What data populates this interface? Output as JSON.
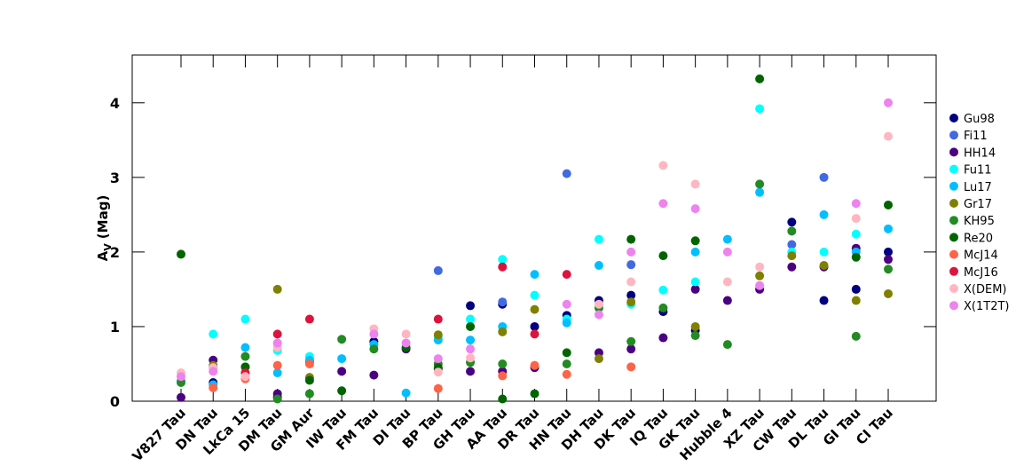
{
  "chart_data": {
    "type": "scatter",
    "ylabel": "A",
    "ylabel_subscript": "V",
    "ylabel_unit": "(Mag)",
    "categories": [
      "V827 Tau",
      "DN Tau",
      "LkCa 15",
      "DM Tau",
      "GM Aur",
      "IW Tau",
      "FM Tau",
      "DI Tau",
      "BP Tau",
      "GH Tau",
      "AA Tau",
      "DR Tau",
      "HN Tau",
      "DH Tau",
      "DK Tau",
      "IQ Tau",
      "GK Tau",
      "Hubble 4",
      "XZ Tau",
      "CW Tau",
      "DL Tau",
      "GI Tau",
      "CI Tau"
    ],
    "ylim": [
      0,
      4.64
    ],
    "yticks": [
      0,
      1,
      2,
      3,
      4
    ],
    "legend": "right",
    "series": [
      {
        "name": "Gu98",
        "color": "#000080",
        "values": [
          null,
          0.25,
          null,
          0.05,
          null,
          null,
          0.8,
          null,
          null,
          1.28,
          1.3,
          1.0,
          1.15,
          1.35,
          1.42,
          1.2,
          0.95,
          null,
          null,
          2.4,
          1.35,
          1.5,
          2.0
        ]
      },
      {
        "name": "Fi11",
        "color": "#4169e1",
        "values": [
          null,
          null,
          null,
          null,
          null,
          null,
          null,
          null,
          1.75,
          null,
          1.33,
          null,
          3.05,
          null,
          1.83,
          null,
          null,
          null,
          null,
          2.1,
          3.0,
          null,
          null
        ]
      },
      {
        "name": "HH14",
        "color": "#4b0082",
        "values": [
          0.05,
          0.55,
          null,
          0.1,
          0.53,
          0.4,
          0.35,
          0.7,
          0.43,
          0.4,
          0.4,
          0.45,
          null,
          0.65,
          0.7,
          0.85,
          1.5,
          1.35,
          1.5,
          1.8,
          1.8,
          2.05,
          1.9
        ]
      },
      {
        "name": "Fu11",
        "color": "#00ffff",
        "values": [
          null,
          0.9,
          1.1,
          0.68,
          0.6,
          null,
          null,
          null,
          0.85,
          1.1,
          1.9,
          1.42,
          1.1,
          2.17,
          1.3,
          1.49,
          1.6,
          null,
          3.92,
          2.0,
          2.0,
          2.24,
          null
        ]
      },
      {
        "name": "Lu17",
        "color": "#00bfff",
        "values": [
          0.27,
          0.22,
          0.72,
          0.38,
          0.55,
          0.57,
          0.76,
          0.11,
          0.82,
          0.82,
          1.0,
          1.7,
          1.05,
          1.82,
          null,
          null,
          2.0,
          2.17,
          2.8,
          null,
          2.5,
          2.0,
          2.31
        ]
      },
      {
        "name": "Gr17",
        "color": "#808000",
        "values": [
          null,
          0.48,
          0.38,
          1.5,
          0.32,
          null,
          null,
          null,
          0.89,
          null,
          0.93,
          1.23,
          null,
          0.57,
          1.33,
          null,
          1.0,
          null,
          1.68,
          1.95,
          1.82,
          1.35,
          1.44
        ]
      },
      {
        "name": "KH95",
        "color": "#228b22",
        "values": [
          0.25,
          0.45,
          0.6,
          0.03,
          0.1,
          0.83,
          0.7,
          null,
          0.5,
          0.52,
          0.5,
          null,
          0.5,
          1.25,
          0.8,
          1.25,
          0.88,
          0.76,
          2.91,
          2.28,
          null,
          0.87,
          1.77
        ]
      },
      {
        "name": "Re20",
        "color": "#006400",
        "values": [
          1.97,
          null,
          0.46,
          null,
          0.28,
          0.14,
          null,
          0.72,
          0.45,
          1.0,
          0.03,
          0.1,
          0.65,
          null,
          2.17,
          1.95,
          2.15,
          null,
          4.32,
          null,
          null,
          1.93,
          2.63
        ]
      },
      {
        "name": "McJ14",
        "color": "#ff6347",
        "values": [
          null,
          0.18,
          0.3,
          0.48,
          0.5,
          null,
          null,
          null,
          0.17,
          null,
          0.34,
          0.48,
          0.36,
          null,
          0.46,
          null,
          null,
          null,
          null,
          null,
          null,
          null,
          null
        ]
      },
      {
        "name": "McJ16",
        "color": "#dc143c",
        "values": [
          null,
          null,
          0.38,
          0.9,
          1.1,
          null,
          null,
          null,
          1.1,
          null,
          1.8,
          0.9,
          1.7,
          null,
          null,
          null,
          null,
          null,
          null,
          null,
          null,
          null,
          null
        ]
      },
      {
        "name": "X(DEM)",
        "color": "#ffb6c1",
        "values": [
          0.38,
          0.45,
          0.33,
          0.72,
          null,
          null,
          0.97,
          0.9,
          0.39,
          0.58,
          null,
          null,
          null,
          1.3,
          1.6,
          3.16,
          2.91,
          1.6,
          1.8,
          null,
          null,
          2.45,
          3.55
        ]
      },
      {
        "name": "X(1T2T)",
        "color": "#ee82ee",
        "values": [
          0.33,
          0.4,
          null,
          0.78,
          null,
          null,
          0.9,
          0.78,
          0.57,
          0.7,
          null,
          null,
          1.3,
          1.16,
          2.0,
          2.65,
          2.58,
          2.0,
          1.55,
          null,
          null,
          2.65,
          4.0
        ]
      }
    ]
  }
}
